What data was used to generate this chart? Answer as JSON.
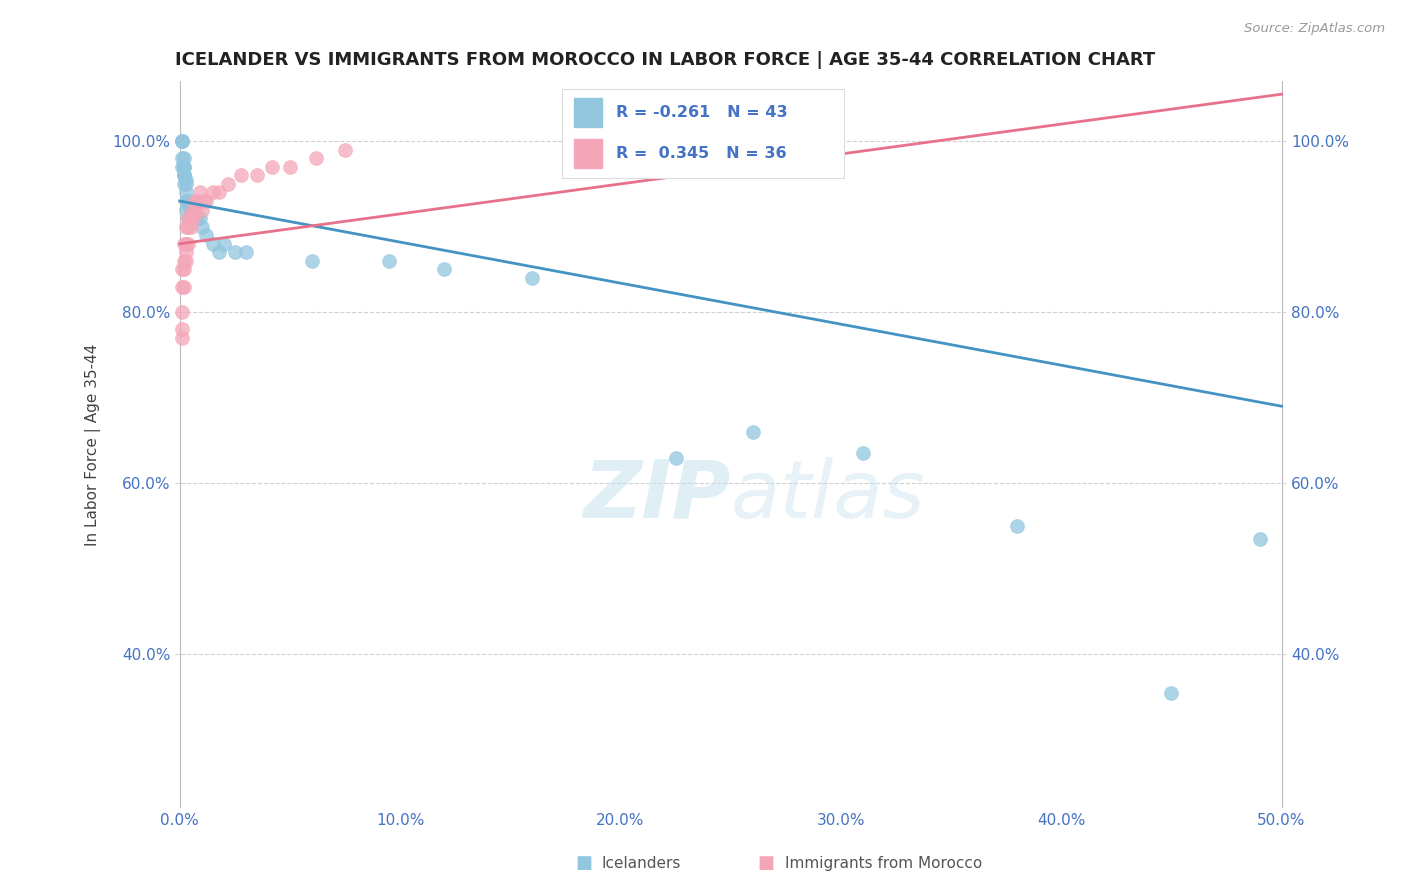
{
  "title": "ICELANDER VS IMMIGRANTS FROM MOROCCO IN LABOR FORCE | AGE 35-44 CORRELATION CHART",
  "source": "Source: ZipAtlas.com",
  "xlabel": "",
  "ylabel": "In Labor Force | Age 35-44",
  "xlim": [
    -0.002,
    0.502
  ],
  "ylim": [
    0.22,
    1.07
  ],
  "xticks": [
    0.0,
    0.1,
    0.2,
    0.3,
    0.4,
    0.5
  ],
  "xticklabels": [
    "0.0%",
    "10.0%",
    "20.0%",
    "30.0%",
    "40.0%",
    "50.0%"
  ],
  "yticks": [
    0.4,
    0.6,
    0.8,
    1.0
  ],
  "yticklabels": [
    "40.0%",
    "60.0%",
    "80.0%",
    "100.0%"
  ],
  "grid_color": "#cccccc",
  "background_color": "#ffffff",
  "watermark_zip": "ZIP",
  "watermark_atlas": "atlas",
  "legend_R_blue": "-0.261",
  "legend_N_blue": "43",
  "legend_R_pink": "0.345",
  "legend_N_pink": "36",
  "blue_color": "#92c5de",
  "pink_color": "#f4a6b8",
  "blue_line_color": "#4393c3",
  "pink_line_color": "#e8718a",
  "blue_intercept": 0.93,
  "blue_slope": -0.48,
  "pink_intercept": 0.88,
  "pink_slope": 0.35,
  "icelanders_x": [
    0.001,
    0.001,
    0.001,
    0.001,
    0.001,
    0.002,
    0.002,
    0.002,
    0.002,
    0.002,
    0.002,
    0.002,
    0.003,
    0.003,
    0.003,
    0.003,
    0.003,
    0.004,
    0.004,
    0.004,
    0.005,
    0.005,
    0.006,
    0.007,
    0.008,
    0.009,
    0.01,
    0.012,
    0.015,
    0.018,
    0.02,
    0.025,
    0.03,
    0.06,
    0.095,
    0.12,
    0.16,
    0.225,
    0.26,
    0.31,
    0.38,
    0.45,
    0.49
  ],
  "icelanders_y": [
    1.0,
    1.0,
    1.0,
    0.98,
    0.97,
    0.98,
    0.97,
    0.97,
    0.96,
    0.96,
    0.96,
    0.95,
    0.955,
    0.95,
    0.94,
    0.93,
    0.92,
    0.93,
    0.925,
    0.91,
    0.91,
    0.91,
    0.92,
    0.925,
    0.91,
    0.91,
    0.9,
    0.89,
    0.88,
    0.87,
    0.88,
    0.87,
    0.87,
    0.86,
    0.86,
    0.85,
    0.84,
    0.63,
    0.66,
    0.635,
    0.55,
    0.355,
    0.535
  ],
  "morocco_x": [
    0.001,
    0.001,
    0.001,
    0.001,
    0.001,
    0.002,
    0.002,
    0.002,
    0.002,
    0.003,
    0.003,
    0.003,
    0.003,
    0.004,
    0.004,
    0.004,
    0.005,
    0.005,
    0.006,
    0.006,
    0.007,
    0.007,
    0.008,
    0.009,
    0.01,
    0.011,
    0.012,
    0.015,
    0.018,
    0.022,
    0.028,
    0.035,
    0.042,
    0.05,
    0.062,
    0.075
  ],
  "morocco_y": [
    0.77,
    0.78,
    0.8,
    0.83,
    0.85,
    0.83,
    0.85,
    0.86,
    0.88,
    0.86,
    0.87,
    0.88,
    0.9,
    0.88,
    0.9,
    0.91,
    0.9,
    0.91,
    0.91,
    0.92,
    0.92,
    0.93,
    0.93,
    0.94,
    0.92,
    0.93,
    0.93,
    0.94,
    0.94,
    0.95,
    0.96,
    0.96,
    0.97,
    0.97,
    0.98,
    0.99
  ]
}
